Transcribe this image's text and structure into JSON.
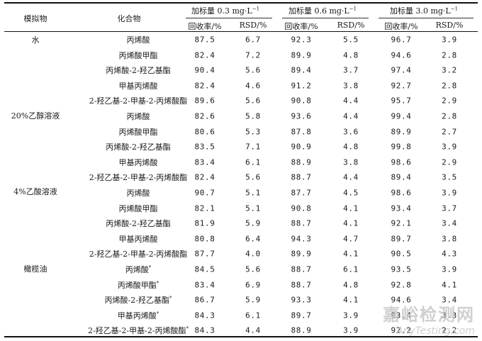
{
  "header": {
    "col_matrix": "模拟物",
    "col_compound": "化合物",
    "spike_groups": [
      {
        "label": "加标量 0.3 mg·L",
        "unit_sup": "−1",
        "recovery": "回收率/%",
        "rsd": "RSD/%"
      },
      {
        "label": "加标量 0.6 mg·L",
        "unit_sup": "−1",
        "recovery": "回收率/%",
        "rsd": "RSD/%"
      },
      {
        "label": "加标量 3.0 mg·L",
        "unit_sup": "−1",
        "recovery": "回收率/%",
        "rsd": "RSD/%"
      }
    ]
  },
  "matrices": [
    "水",
    "20%乙醇溶液",
    "4%乙酸溶液",
    "橄榄油"
  ],
  "rows": [
    {
      "compound": "丙烯酸",
      "mark": "",
      "values": [
        "87.5",
        "6.7",
        "92.3",
        "5.5",
        "96.7",
        "3.9"
      ]
    },
    {
      "compound": "丙烯酸甲酯",
      "mark": "",
      "values": [
        "82.4",
        "7.2",
        "89.9",
        "4.8",
        "94.6",
        "2.8"
      ]
    },
    {
      "compound": "丙烯酸-2-羟乙基酯",
      "mark": "",
      "values": [
        "90.4",
        "5.6",
        "89.4",
        "3.7",
        "97.4",
        "3.2"
      ]
    },
    {
      "compound": "甲基丙烯酸",
      "mark": "",
      "values": [
        "82.4",
        "4.6",
        "91.2",
        "3.8",
        "92.7",
        "2.8"
      ]
    },
    {
      "compound": "2-羟乙基-2-甲基-2-丙烯酸酯",
      "mark": "",
      "values": [
        "89.6",
        "5.6",
        "90.8",
        "4.4",
        "95.7",
        "2.9"
      ]
    },
    {
      "compound": "丙烯酸",
      "mark": "",
      "values": [
        "82.6",
        "5.8",
        "93.6",
        "4.4",
        "99.4",
        "2.8"
      ]
    },
    {
      "compound": "丙烯酸甲酯",
      "mark": "",
      "values": [
        "80.6",
        "5.3",
        "87.8",
        "3.6",
        "89.9",
        "2.7"
      ]
    },
    {
      "compound": "丙烯酸-2-羟乙基酯",
      "mark": "",
      "values": [
        "83.5",
        "7.1",
        "90.9",
        "4.8",
        "99.8",
        "3.9"
      ]
    },
    {
      "compound": "甲基丙烯酸",
      "mark": "",
      "values": [
        "83.4",
        "6.1",
        "88.9",
        "3.8",
        "98.6",
        "2.9"
      ]
    },
    {
      "compound": "2-羟乙基-2-甲基-2-丙烯酸酯",
      "mark": "",
      "values": [
        "82.4",
        "5.6",
        "88.7",
        "4.4",
        "89.4",
        "3.5"
      ]
    },
    {
      "compound": "丙烯酸",
      "mark": "",
      "values": [
        "90.7",
        "5.1",
        "87.7",
        "4.5",
        "98.6",
        "3.9"
      ]
    },
    {
      "compound": "丙烯酸甲酯",
      "mark": "",
      "values": [
        "82.1",
        "5.1",
        "90.8",
        "4.1",
        "93.4",
        "3.7"
      ]
    },
    {
      "compound": "丙烯酸-2-羟乙基酯",
      "mark": "",
      "values": [
        "81.9",
        "5.9",
        "88.7",
        "4.1",
        "92.1",
        "3.4"
      ]
    },
    {
      "compound": "甲基丙烯酸",
      "mark": "",
      "values": [
        "80.8",
        "6.4",
        "94.3",
        "4.7",
        "89.7",
        "3.8"
      ]
    },
    {
      "compound": "2-羟乙基-2-甲基-2-丙烯酸酯",
      "mark": "",
      "values": [
        "87.7",
        "4.0",
        "89.9",
        "4.1",
        "90.5",
        "4.3"
      ]
    },
    {
      "compound": "丙烯酸",
      "mark": "*",
      "values": [
        "84.5",
        "5.6",
        "88.7",
        "6.1",
        "93.5",
        "3.9"
      ]
    },
    {
      "compound": "丙烯酸甲酯",
      "mark": "*",
      "values": [
        "83.4",
        "6.9",
        "88.7",
        "4.8",
        "92.8",
        "4.1"
      ]
    },
    {
      "compound": "丙烯酸-2-羟乙基酯",
      "mark": "*",
      "values": [
        "86.7",
        "5.9",
        "93.3",
        "4.1",
        "94.6",
        "3.4"
      ]
    },
    {
      "compound": "甲基丙烯酸",
      "mark": "*",
      "values": [
        "84.3",
        "6.1",
        "89.7",
        "3.9",
        "93.4",
        "3.3"
      ]
    },
    {
      "compound": "2-羟乙基-2-甲基-2-丙烯酸酯",
      "mark": "*",
      "values": [
        "84.3",
        "4.4",
        "88.9",
        "3.9",
        "92.2",
        "2.2"
      ]
    }
  ],
  "watermark": {
    "cn": "嘉峪检测网",
    "en": "AnyTesting.com"
  }
}
